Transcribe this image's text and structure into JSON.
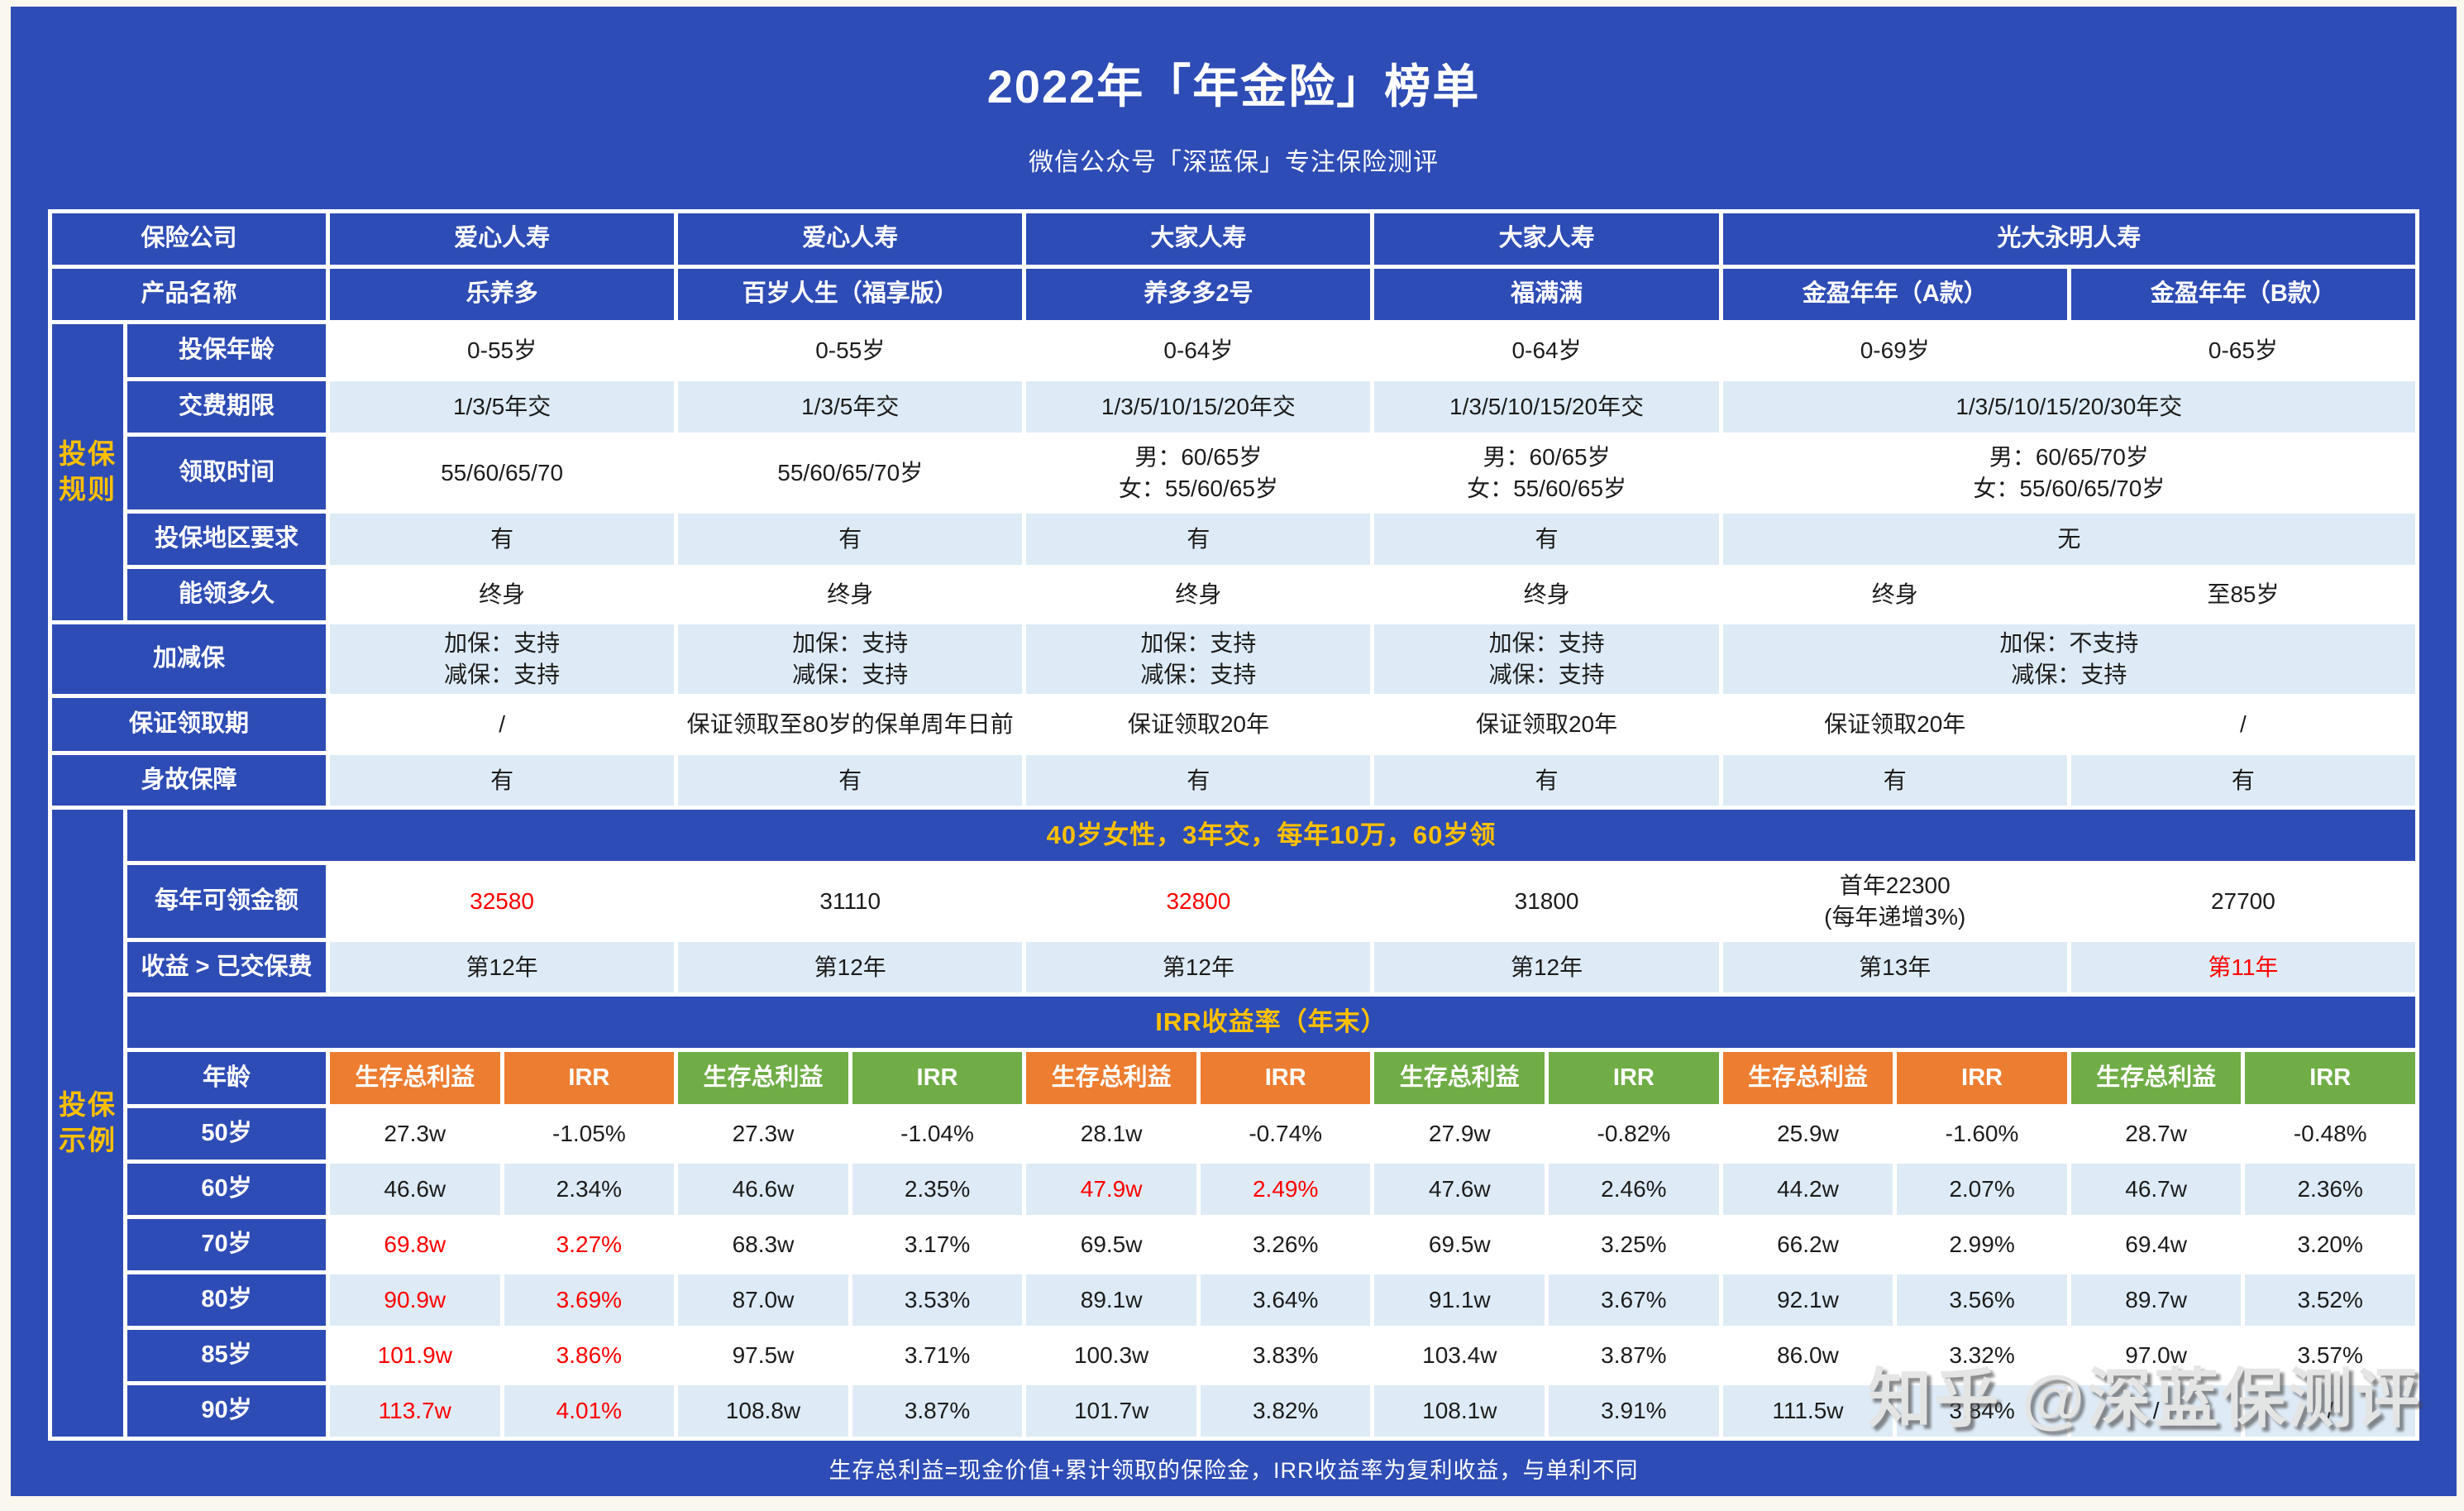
{
  "page": {
    "title": "2022年「年金险」榜单",
    "subtitle": "微信公众号「深蓝保」专注保险测评",
    "footer": "生存总利益=现金价值+累计领取的保险金，IRR收益率为复利收益，与单利不同",
    "watermark": "知乎 @深蓝保测评"
  },
  "palette": {
    "page_blue": "#2e4cb5",
    "row_light_blue": "#deebf7",
    "row_white": "#ffffff",
    "header_orange": "#ed7d31",
    "header_green": "#70ad47",
    "accent_yellow": "#ffc000",
    "highlight_red": "#ff0000"
  },
  "table": {
    "columns": {
      "strip": 86,
      "label": 240,
      "product_subcols": 12
    },
    "rows": [
      {
        "name": "company-row",
        "h": 62,
        "cells": [
          {
            "n": "company-label",
            "t": "保险公司",
            "c": "1 / span 2",
            "cls": "b"
          },
          {
            "t": "爱心人寿",
            "sp": 2,
            "cls": "b"
          },
          {
            "t": "爱心人寿",
            "sp": 2,
            "cls": "b"
          },
          {
            "t": "大家人寿",
            "sp": 2,
            "cls": "b"
          },
          {
            "t": "大家人寿",
            "sp": 2,
            "cls": "b"
          },
          {
            "t": "光大永明人寿",
            "sp": 4,
            "cls": "b"
          }
        ]
      },
      {
        "name": "product-row",
        "h": 62,
        "cells": [
          {
            "n": "product-label",
            "t": "产品名称",
            "c": "1 / span 2",
            "cls": "b"
          },
          {
            "t": "乐养多",
            "sp": 2,
            "cls": "b"
          },
          {
            "t": "百岁人生（福享版）",
            "sp": 2,
            "cls": "b"
          },
          {
            "t": "养多多2号",
            "sp": 2,
            "cls": "b"
          },
          {
            "t": "福满满",
            "sp": 2,
            "cls": "b"
          },
          {
            "t": "金盈年年（A款）",
            "sp": 2,
            "cls": "b"
          },
          {
            "t": "金盈年年（B款）",
            "sp": 2,
            "cls": "b"
          }
        ]
      },
      {
        "name": "row-age",
        "h": 64,
        "cells": [
          {
            "n": "group-label-rules",
            "t": "投保\n规则",
            "c": "1",
            "rs": 5,
            "cls": "b strip"
          },
          {
            "n": "row-label-age",
            "t": "投保年龄",
            "cls": "b"
          },
          {
            "t": "0-55岁",
            "sp": 2,
            "cls": "w"
          },
          {
            "t": "0-55岁",
            "sp": 2,
            "cls": "w"
          },
          {
            "t": "0-64岁",
            "sp": 2,
            "cls": "w"
          },
          {
            "t": "0-64岁",
            "sp": 2,
            "cls": "w"
          },
          {
            "t": "0-69岁",
            "sp": 2,
            "cls": "w"
          },
          {
            "t": "0-65岁",
            "sp": 2,
            "cls": "w"
          }
        ]
      },
      {
        "name": "row-payment-term",
        "h": 62,
        "cells": [
          {
            "n": "row-label-payment-term",
            "t": "交费期限",
            "cls": "b"
          },
          {
            "t": "1/3/5年交",
            "sp": 2,
            "cls": "lt"
          },
          {
            "t": "1/3/5年交",
            "sp": 2,
            "cls": "lt"
          },
          {
            "t": "1/3/5/10/15/20年交",
            "sp": 2,
            "cls": "lt"
          },
          {
            "t": "1/3/5/10/15/20年交",
            "sp": 2,
            "cls": "lt"
          },
          {
            "t": "1/3/5/10/15/20/30年交",
            "sp": 4,
            "cls": "lt"
          }
        ]
      },
      {
        "name": "row-collect-time",
        "h": 88,
        "cells": [
          {
            "n": "row-label-collect-time",
            "t": "领取时间",
            "cls": "b"
          },
          {
            "t": "55/60/65/70",
            "sp": 2,
            "cls": "w"
          },
          {
            "t": "55/60/65/70岁",
            "sp": 2,
            "cls": "w"
          },
          {
            "t": "男：60/65岁\n女：55/60/65岁",
            "sp": 2,
            "cls": "w"
          },
          {
            "t": "男：60/65岁\n女：55/60/65岁",
            "sp": 2,
            "cls": "w"
          },
          {
            "t": "男：60/65/70岁\n女：55/60/65/70岁",
            "sp": 4,
            "cls": "w"
          }
        ]
      },
      {
        "name": "row-region-requirement",
        "h": 62,
        "cells": [
          {
            "n": "row-label-region",
            "t": "投保地区要求",
            "cls": "b"
          },
          {
            "t": "有",
            "sp": 2,
            "cls": "lt"
          },
          {
            "t": "有",
            "sp": 2,
            "cls": "lt"
          },
          {
            "t": "有",
            "sp": 2,
            "cls": "lt"
          },
          {
            "t": "有",
            "sp": 2,
            "cls": "lt"
          },
          {
            "t": "无",
            "sp": 4,
            "cls": "lt"
          }
        ]
      },
      {
        "name": "row-duration",
        "h": 62,
        "cells": [
          {
            "n": "row-label-duration",
            "t": "能领多久",
            "cls": "b"
          },
          {
            "t": "终身",
            "sp": 2,
            "cls": "w"
          },
          {
            "t": "终身",
            "sp": 2,
            "cls": "w"
          },
          {
            "t": "终身",
            "sp": 2,
            "cls": "w"
          },
          {
            "t": "终身",
            "sp": 2,
            "cls": "w"
          },
          {
            "t": "终身",
            "sp": 2,
            "cls": "w"
          },
          {
            "t": "至85岁",
            "sp": 2,
            "cls": "w"
          }
        ]
      },
      {
        "name": "row-adjust",
        "h": 84,
        "cells": [
          {
            "n": "row-label-adjust",
            "t": "加减保",
            "c": "1 / span 2",
            "cls": "b"
          },
          {
            "t": "加保：支持\n减保：支持",
            "sp": 2,
            "cls": "lt"
          },
          {
            "t": "加保：支持\n减保：支持",
            "sp": 2,
            "cls": "lt"
          },
          {
            "t": "加保：支持\n减保：支持",
            "sp": 2,
            "cls": "lt"
          },
          {
            "t": "加保：支持\n减保：支持",
            "sp": 2,
            "cls": "lt"
          },
          {
            "t": "加保：不支持\n减保：支持",
            "sp": 4,
            "cls": "lt"
          }
        ]
      },
      {
        "name": "row-guarantee-period",
        "h": 64,
        "cells": [
          {
            "n": "row-label-guarantee",
            "t": "保证领取期",
            "c": "1 / span 2",
            "cls": "b"
          },
          {
            "t": "/",
            "sp": 2,
            "cls": "w"
          },
          {
            "t": "保证领取至80岁的保单周年日前",
            "sp": 2,
            "cls": "w"
          },
          {
            "t": "保证领取20年",
            "sp": 2,
            "cls": "w"
          },
          {
            "t": "保证领取20年",
            "sp": 2,
            "cls": "w"
          },
          {
            "t": "保证领取20年",
            "sp": 2,
            "cls": "w"
          },
          {
            "t": "/",
            "sp": 2,
            "cls": "w"
          }
        ]
      },
      {
        "name": "row-death-benefit",
        "h": 61,
        "cells": [
          {
            "n": "row-label-death-benefit",
            "t": "身故保障",
            "c": "1 / span 2",
            "cls": "b"
          },
          {
            "t": "有",
            "sp": 2,
            "cls": "lt"
          },
          {
            "t": "有",
            "sp": 2,
            "cls": "lt"
          },
          {
            "t": "有",
            "sp": 2,
            "cls": "lt"
          },
          {
            "t": "有",
            "sp": 2,
            "cls": "lt"
          },
          {
            "t": "有",
            "sp": 2,
            "cls": "lt"
          },
          {
            "t": "有",
            "sp": 2,
            "cls": "lt"
          }
        ]
      },
      {
        "name": "scenario-banner-row",
        "h": 62,
        "cells": [
          {
            "n": "group-label-example",
            "t": "投保\n示例",
            "c": "1",
            "rs": 11,
            "cls": "b strip"
          },
          {
            "n": "scenario-banner",
            "t": "40岁女性，3年交，每年10万，60岁领",
            "c": "2 / -1",
            "cls": "banner"
          }
        ]
      },
      {
        "name": "row-annual-amount",
        "h": 88,
        "cells": [
          {
            "n": "row-label-annual-amount",
            "t": "每年可领金额",
            "cls": "b"
          },
          {
            "t": "32580",
            "sp": 2,
            "cls": "w red"
          },
          {
            "t": "31110",
            "sp": 2,
            "cls": "w"
          },
          {
            "t": "32800",
            "sp": 2,
            "cls": "w red"
          },
          {
            "t": "31800",
            "sp": 2,
            "cls": "w"
          },
          {
            "t": "首年22300\n(每年递增3%)",
            "sp": 2,
            "cls": "w"
          },
          {
            "t": "27700",
            "sp": 2,
            "cls": "w"
          }
        ]
      },
      {
        "name": "row-breakeven",
        "h": 61,
        "cells": [
          {
            "n": "row-label-breakeven",
            "t": "收益 > 已交保费",
            "cls": "b"
          },
          {
            "t": "第12年",
            "sp": 2,
            "cls": "lt"
          },
          {
            "t": "第12年",
            "sp": 2,
            "cls": "lt"
          },
          {
            "t": "第12年",
            "sp": 2,
            "cls": "lt"
          },
          {
            "t": "第12年",
            "sp": 2,
            "cls": "lt"
          },
          {
            "t": "第13年",
            "sp": 2,
            "cls": "lt"
          },
          {
            "t": "第11年",
            "sp": 2,
            "cls": "lt red"
          }
        ]
      },
      {
        "name": "irr-banner-row",
        "h": 62,
        "cells": [
          {
            "n": "irr-banner",
            "t": "IRR收益率（年末）",
            "c": "2 / -1",
            "cls": "banner"
          }
        ]
      },
      {
        "name": "irr-header-row",
        "h": 63,
        "cells": [
          {
            "n": "row-label-age-header",
            "t": "年龄",
            "cls": "b"
          },
          {
            "t": "生存总利益",
            "cls": "o"
          },
          {
            "t": "IRR",
            "cls": "o"
          },
          {
            "t": "生存总利益",
            "cls": "g"
          },
          {
            "t": "IRR",
            "cls": "g"
          },
          {
            "t": "生存总利益",
            "cls": "o"
          },
          {
            "t": "IRR",
            "cls": "o"
          },
          {
            "t": "生存总利益",
            "cls": "g"
          },
          {
            "t": "IRR",
            "cls": "g"
          },
          {
            "t": "生存总利益",
            "cls": "o"
          },
          {
            "t": "IRR",
            "cls": "o"
          },
          {
            "t": "生存总利益",
            "cls": "g"
          },
          {
            "t": "IRR",
            "cls": "g"
          }
        ]
      },
      {
        "name": "row-age-50",
        "h": 62,
        "cells": [
          {
            "n": "row-label-age-50",
            "t": "50岁",
            "cls": "b"
          },
          {
            "t": "27.3w",
            "cls": "w"
          },
          {
            "t": "-1.05%",
            "cls": "w"
          },
          {
            "t": "27.3w",
            "cls": "w"
          },
          {
            "t": "-1.04%",
            "cls": "w"
          },
          {
            "t": "28.1w",
            "cls": "w"
          },
          {
            "t": "-0.74%",
            "cls": "w"
          },
          {
            "t": "27.9w",
            "cls": "w"
          },
          {
            "t": "-0.82%",
            "cls": "w"
          },
          {
            "t": "25.9w",
            "cls": "w"
          },
          {
            "t": "-1.60%",
            "cls": "w"
          },
          {
            "t": "28.7w",
            "cls": "w"
          },
          {
            "t": "-0.48%",
            "cls": "w"
          }
        ]
      },
      {
        "name": "row-age-60",
        "h": 62,
        "cells": [
          {
            "n": "row-label-age-60",
            "t": "60岁",
            "cls": "b"
          },
          {
            "t": "46.6w",
            "cls": "lt"
          },
          {
            "t": "2.34%",
            "cls": "lt"
          },
          {
            "t": "46.6w",
            "cls": "lt"
          },
          {
            "t": "2.35%",
            "cls": "lt"
          },
          {
            "t": "47.9w",
            "cls": "lt red"
          },
          {
            "t": "2.49%",
            "cls": "lt red"
          },
          {
            "t": "47.6w",
            "cls": "lt"
          },
          {
            "t": "2.46%",
            "cls": "lt"
          },
          {
            "t": "44.2w",
            "cls": "lt"
          },
          {
            "t": "2.07%",
            "cls": "lt"
          },
          {
            "t": "46.7w",
            "cls": "lt"
          },
          {
            "t": "2.36%",
            "cls": "lt"
          }
        ]
      },
      {
        "name": "row-age-70",
        "h": 62,
        "cells": [
          {
            "n": "row-label-age-70",
            "t": "70岁",
            "cls": "b"
          },
          {
            "t": "69.8w",
            "cls": "w red"
          },
          {
            "t": "3.27%",
            "cls": "w red"
          },
          {
            "t": "68.3w",
            "cls": "w"
          },
          {
            "t": "3.17%",
            "cls": "w"
          },
          {
            "t": "69.5w",
            "cls": "w"
          },
          {
            "t": "3.26%",
            "cls": "w"
          },
          {
            "t": "69.5w",
            "cls": "w"
          },
          {
            "t": "3.25%",
            "cls": "w"
          },
          {
            "t": "66.2w",
            "cls": "w"
          },
          {
            "t": "2.99%",
            "cls": "w"
          },
          {
            "t": "69.4w",
            "cls": "w"
          },
          {
            "t": "3.20%",
            "cls": "w"
          }
        ]
      },
      {
        "name": "row-age-80",
        "h": 62,
        "cells": [
          {
            "n": "row-label-age-80",
            "t": "80岁",
            "cls": "b"
          },
          {
            "t": "90.9w",
            "cls": "lt red"
          },
          {
            "t": "3.69%",
            "cls": "lt red"
          },
          {
            "t": "87.0w",
            "cls": "lt"
          },
          {
            "t": "3.53%",
            "cls": "lt"
          },
          {
            "t": "89.1w",
            "cls": "lt"
          },
          {
            "t": "3.64%",
            "cls": "lt"
          },
          {
            "t": "91.1w",
            "cls": "lt"
          },
          {
            "t": "3.67%",
            "cls": "lt"
          },
          {
            "t": "92.1w",
            "cls": "lt"
          },
          {
            "t": "3.56%",
            "cls": "lt"
          },
          {
            "t": "89.7w",
            "cls": "lt"
          },
          {
            "t": "3.52%",
            "cls": "lt"
          }
        ]
      },
      {
        "name": "row-age-85",
        "h": 62,
        "cells": [
          {
            "n": "row-label-age-85",
            "t": "85岁",
            "cls": "b"
          },
          {
            "t": "101.9w",
            "cls": "w red"
          },
          {
            "t": "3.86%",
            "cls": "w red"
          },
          {
            "t": "97.5w",
            "cls": "w"
          },
          {
            "t": "3.71%",
            "cls": "w"
          },
          {
            "t": "100.3w",
            "cls": "w"
          },
          {
            "t": "3.83%",
            "cls": "w"
          },
          {
            "t": "103.4w",
            "cls": "w"
          },
          {
            "t": "3.87%",
            "cls": "w"
          },
          {
            "t": "86.0w",
            "cls": "w"
          },
          {
            "t": "3.32%",
            "cls": "w"
          },
          {
            "t": "97.0w",
            "cls": "w"
          },
          {
            "t": "3.57%",
            "cls": "w"
          }
        ]
      },
      {
        "name": "row-age-90",
        "h": 62,
        "cells": [
          {
            "n": "row-label-age-90",
            "t": "90岁",
            "cls": "b"
          },
          {
            "t": "113.7w",
            "cls": "lt red"
          },
          {
            "t": "4.01%",
            "cls": "lt red"
          },
          {
            "t": "108.8w",
            "cls": "lt"
          },
          {
            "t": "3.87%",
            "cls": "lt"
          },
          {
            "t": "101.7w",
            "cls": "lt"
          },
          {
            "t": "3.82%",
            "cls": "lt"
          },
          {
            "t": "108.1w",
            "cls": "lt"
          },
          {
            "t": "3.91%",
            "cls": "lt"
          },
          {
            "t": "111.5w",
            "cls": "lt"
          },
          {
            "t": "3.84%",
            "cls": "lt"
          },
          {
            "t": "/",
            "cls": "lt"
          },
          {
            "t": "/",
            "cls": "lt"
          }
        ]
      }
    ]
  }
}
